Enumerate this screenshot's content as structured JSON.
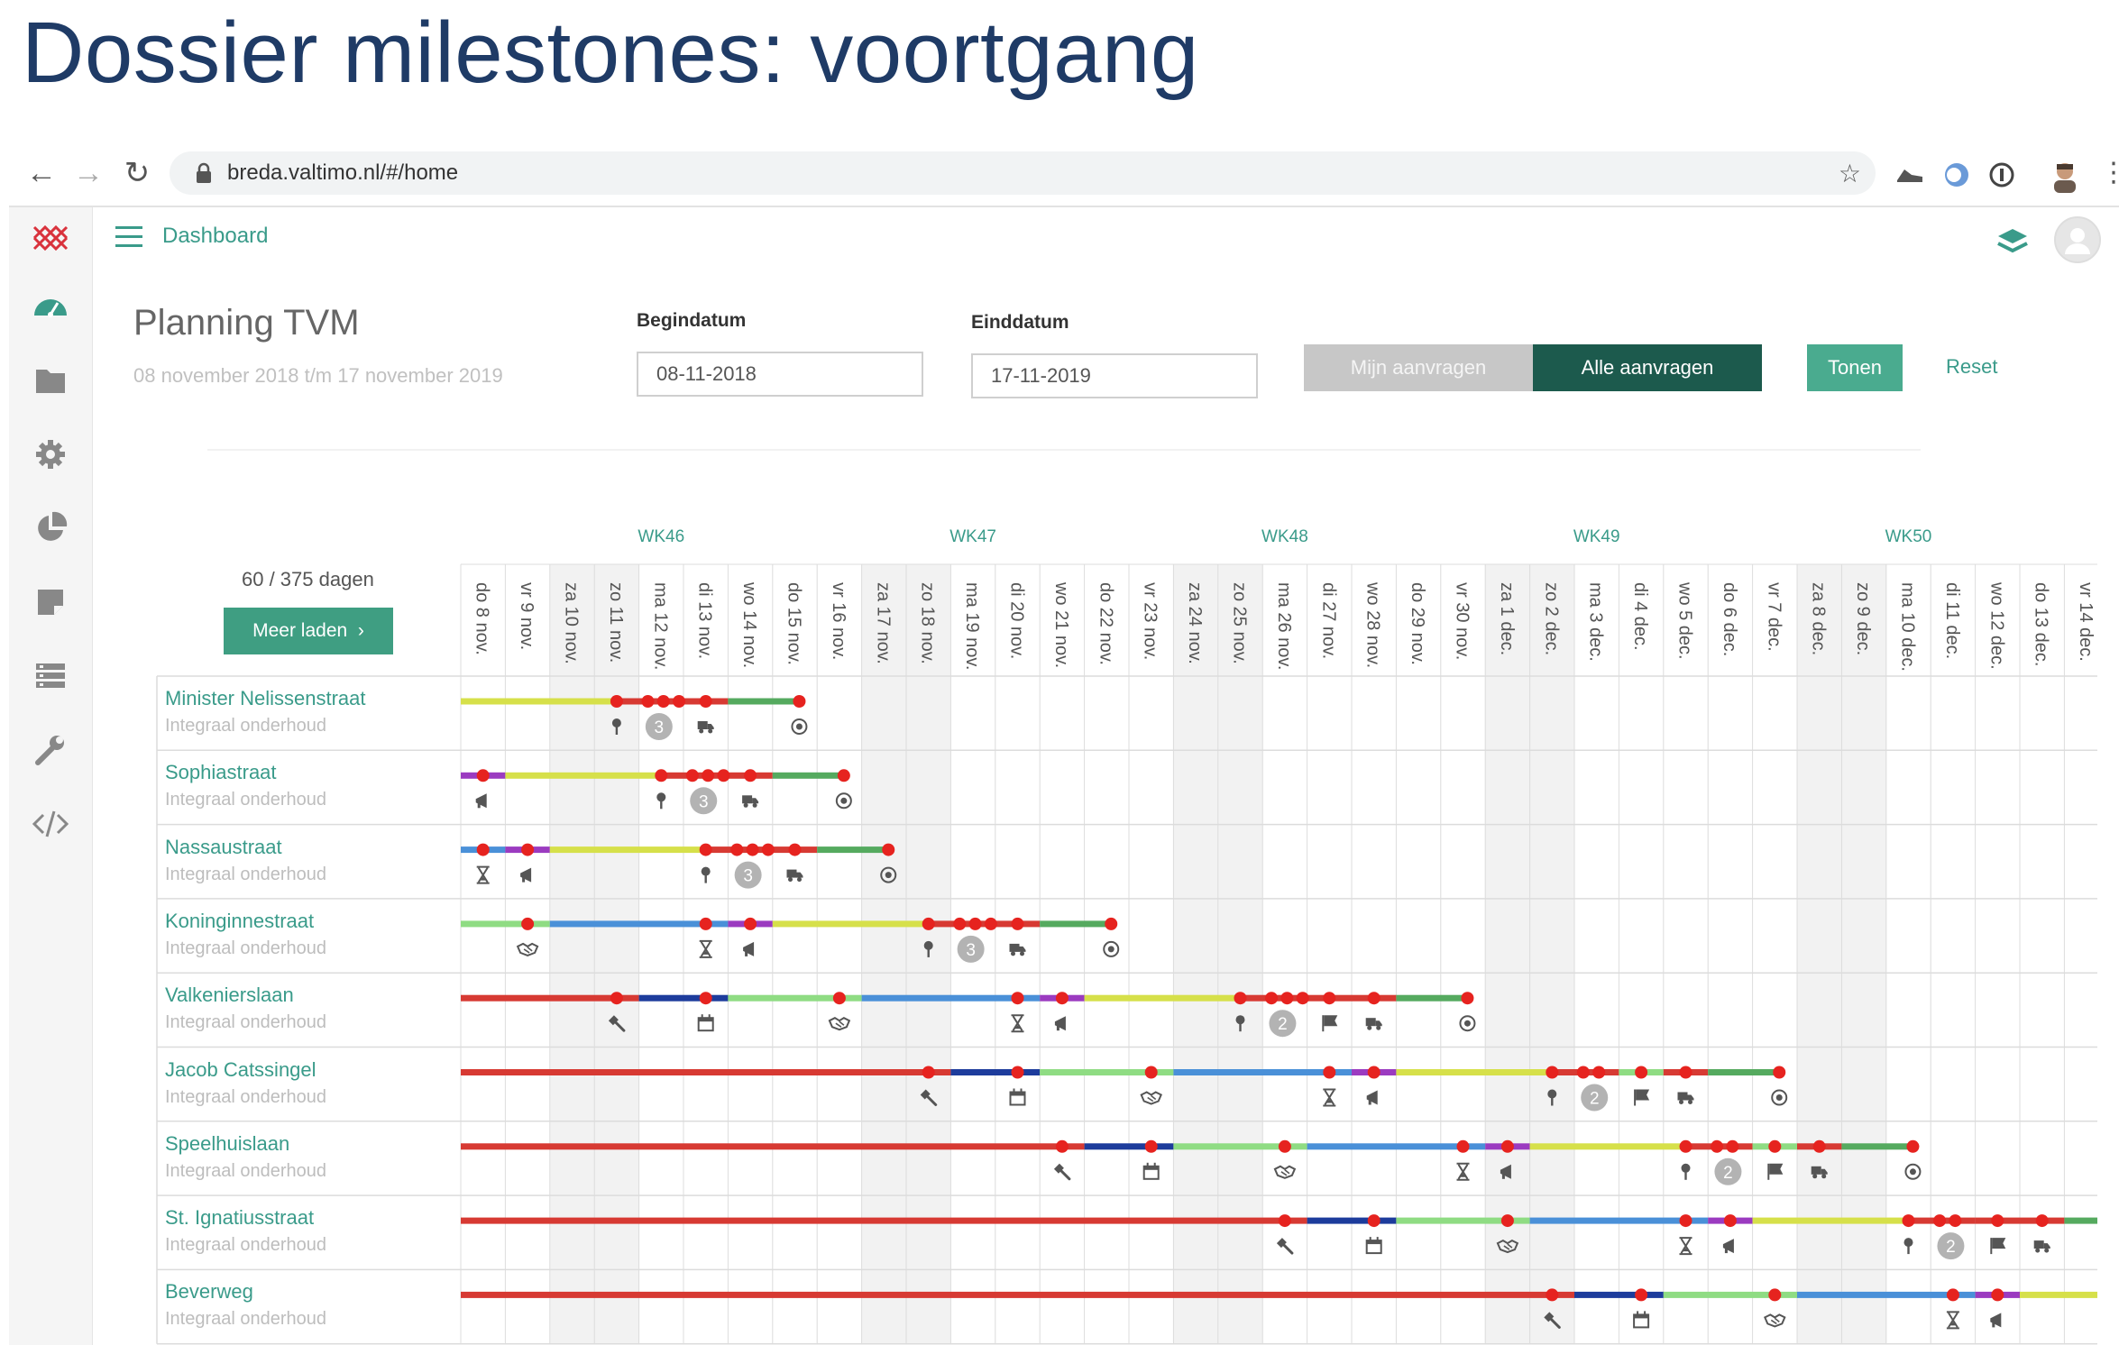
{
  "slide_title": "Dossier milestones: voortgang",
  "browser": {
    "url": "breda.valtimo.nl/#/home"
  },
  "topbar": {
    "title": "Dashboard"
  },
  "planning": {
    "title": "Planning TVM",
    "subtitle": "08 november 2018 t/m 17 november 2019",
    "begin_label": "Begindatum",
    "begin_value": "08-11-2018",
    "end_label": "Einddatum",
    "end_value": "17-11-2019",
    "btn_mijn": "Mijn aanvragen",
    "btn_alle": "Alle aanvragen",
    "btn_tonen": "Tonen",
    "btn_reset": "Reset",
    "days_count": "60 / 375 dagen",
    "btn_meer": "Meer laden"
  },
  "colors": {
    "accent": "#3a9b8a",
    "dark_green": "#1c5a4d",
    "red": "#d73a33",
    "yellow": "#d6e04a",
    "blue": "#4a90d8",
    "navy": "#1d3c9c",
    "purple": "#9b3bc0",
    "green": "#55aa5f",
    "light_green": "#8fdc83",
    "marker": "#e6231f"
  },
  "weeks": [
    {
      "label": "WK46",
      "day": 4
    },
    {
      "label": "WK47",
      "day": 11
    },
    {
      "label": "WK48",
      "day": 18
    },
    {
      "label": "WK49",
      "day": 25
    },
    {
      "label": "WK50",
      "day": 32
    }
  ],
  "days": [
    {
      "label": "do 8 nov.",
      "weekend": false
    },
    {
      "label": "vr 9 nov.",
      "weekend": false
    },
    {
      "label": "za 10 nov.",
      "weekend": true
    },
    {
      "label": "zo 11 nov.",
      "weekend": true
    },
    {
      "label": "ma 12 nov.",
      "weekend": false
    },
    {
      "label": "di 13 nov.",
      "weekend": false
    },
    {
      "label": "wo 14 nov.",
      "weekend": false
    },
    {
      "label": "do 15 nov.",
      "weekend": false
    },
    {
      "label": "vr 16 nov.",
      "weekend": false
    },
    {
      "label": "za 17 nov.",
      "weekend": true
    },
    {
      "label": "zo 18 nov.",
      "weekend": true
    },
    {
      "label": "ma 19 nov.",
      "weekend": false
    },
    {
      "label": "di 20 nov.",
      "weekend": false
    },
    {
      "label": "wo 21 nov.",
      "weekend": false
    },
    {
      "label": "do 22 nov.",
      "weekend": false
    },
    {
      "label": "vr 23 nov.",
      "weekend": false
    },
    {
      "label": "za 24 nov.",
      "weekend": true
    },
    {
      "label": "zo 25 nov.",
      "weekend": true
    },
    {
      "label": "ma 26 nov.",
      "weekend": false
    },
    {
      "label": "di 27 nov.",
      "weekend": false
    },
    {
      "label": "wo 28 nov.",
      "weekend": false
    },
    {
      "label": "do 29 nov.",
      "weekend": false
    },
    {
      "label": "vr 30 nov.",
      "weekend": false
    },
    {
      "label": "za 1 dec.",
      "weekend": true
    },
    {
      "label": "zo 2 dec.",
      "weekend": true
    },
    {
      "label": "ma 3 dec.",
      "weekend": false
    },
    {
      "label": "di 4 dec.",
      "weekend": false
    },
    {
      "label": "wo 5 dec.",
      "weekend": false
    },
    {
      "label": "do 6 dec.",
      "weekend": false
    },
    {
      "label": "vr 7 dec.",
      "weekend": false
    },
    {
      "label": "za 8 dec.",
      "weekend": true
    },
    {
      "label": "zo 9 dec.",
      "weekend": true
    },
    {
      "label": "ma 10 dec.",
      "weekend": false
    },
    {
      "label": "di 11 dec.",
      "weekend": false
    },
    {
      "label": "wo 12 dec.",
      "weekend": false
    },
    {
      "label": "do 13 dec.",
      "weekend": false
    },
    {
      "label": "vr 14 dec.",
      "weekend": false
    }
  ],
  "rows": [
    {
      "name": "Minister Nelissenstraat",
      "type": "Integraal onderhoud",
      "segments": [
        [
          0,
          3.5,
          "yellow"
        ],
        [
          3.5,
          5,
          "red"
        ],
        [
          5,
          6,
          "red"
        ],
        [
          6,
          7.6,
          "green"
        ]
      ],
      "dots": [
        3.5,
        4.2,
        4.55,
        4.9,
        5.5,
        7.6
      ],
      "icons": [
        [
          3.5,
          "pin"
        ],
        [
          4.45,
          "badge",
          "3"
        ],
        [
          5.5,
          "truck"
        ],
        [
          7.6,
          "target"
        ]
      ]
    },
    {
      "name": "Sophiastraat",
      "type": "Integraal onderhoud",
      "segments": [
        [
          0,
          0.5,
          "purple"
        ],
        [
          0.5,
          1,
          "purple"
        ],
        [
          1,
          4.5,
          "yellow"
        ],
        [
          4.5,
          6,
          "red"
        ],
        [
          6,
          7,
          "red"
        ],
        [
          7,
          8.6,
          "green"
        ]
      ],
      "dots": [
        0.5,
        4.5,
        5.2,
        5.55,
        5.9,
        6.5,
        8.6
      ],
      "icons": [
        [
          0.5,
          "megaphone"
        ],
        [
          4.5,
          "pin"
        ],
        [
          5.45,
          "badge",
          "3"
        ],
        [
          6.5,
          "truck"
        ],
        [
          8.6,
          "target"
        ]
      ]
    },
    {
      "name": "Nassaustraat",
      "type": "Integraal onderhoud",
      "segments": [
        [
          0,
          0.5,
          "blue"
        ],
        [
          0.5,
          1,
          "blue"
        ],
        [
          1,
          1.5,
          "purple"
        ],
        [
          1.5,
          2,
          "purple"
        ],
        [
          2,
          5.5,
          "yellow"
        ],
        [
          5.5,
          7,
          "red"
        ],
        [
          7,
          8,
          "red"
        ],
        [
          8,
          9.6,
          "green"
        ]
      ],
      "dots": [
        0.5,
        1.5,
        5.5,
        6.2,
        6.55,
        6.9,
        7.5,
        9.6
      ],
      "icons": [
        [
          0.5,
          "hourglass"
        ],
        [
          1.5,
          "megaphone"
        ],
        [
          5.5,
          "pin"
        ],
        [
          6.45,
          "badge",
          "3"
        ],
        [
          7.5,
          "truck"
        ],
        [
          9.6,
          "target"
        ]
      ]
    },
    {
      "name": "Koninginnestraat",
      "type": "Integraal onderhoud",
      "segments": [
        [
          0,
          1.5,
          "lightgreen"
        ],
        [
          1.5,
          2,
          "lightgreen"
        ],
        [
          2,
          5.5,
          "blue"
        ],
        [
          5.5,
          6,
          "blue"
        ],
        [
          6,
          6.5,
          "purple"
        ],
        [
          6.5,
          7,
          "purple"
        ],
        [
          7,
          10.5,
          "yellow"
        ],
        [
          10.5,
          12,
          "red"
        ],
        [
          12,
          13,
          "red"
        ],
        [
          13,
          14.6,
          "green"
        ]
      ],
      "dots": [
        1.5,
        5.5,
        6.5,
        10.5,
        11.2,
        11.55,
        11.9,
        12.5,
        14.6
      ],
      "icons": [
        [
          1.5,
          "handshake"
        ],
        [
          5.5,
          "hourglass"
        ],
        [
          6.5,
          "megaphone"
        ],
        [
          10.5,
          "pin"
        ],
        [
          11.45,
          "badge",
          "3"
        ],
        [
          12.5,
          "truck"
        ],
        [
          14.6,
          "target"
        ]
      ]
    },
    {
      "name": "Valkenierslaan",
      "type": "Integraal onderhoud",
      "segments": [
        [
          0,
          3.5,
          "red"
        ],
        [
          3.5,
          4,
          "red"
        ],
        [
          4,
          5.5,
          "navy"
        ],
        [
          5.5,
          6,
          "navy"
        ],
        [
          6,
          8.5,
          "lightgreen"
        ],
        [
          8.5,
          9,
          "lightgreen"
        ],
        [
          9,
          12.5,
          "blue"
        ],
        [
          12.5,
          13,
          "blue"
        ],
        [
          13,
          13.5,
          "purple"
        ],
        [
          13.5,
          14,
          "purple"
        ],
        [
          14,
          17.5,
          "yellow"
        ],
        [
          17.5,
          19,
          "red"
        ],
        [
          19,
          20,
          "red"
        ],
        [
          20,
          21,
          "red"
        ],
        [
          21,
          22.6,
          "green"
        ]
      ],
      "dots": [
        3.5,
        5.5,
        8.5,
        12.5,
        13.5,
        17.5,
        18.2,
        18.55,
        18.9,
        19.5,
        20.5,
        22.6
      ],
      "icons": [
        [
          3.5,
          "hammer"
        ],
        [
          5.5,
          "calendar"
        ],
        [
          8.5,
          "handshake"
        ],
        [
          12.5,
          "hourglass"
        ],
        [
          13.5,
          "megaphone"
        ],
        [
          17.5,
          "pin"
        ],
        [
          18.45,
          "badge",
          "2"
        ],
        [
          19.5,
          "flag"
        ],
        [
          20.5,
          "truck"
        ],
        [
          22.6,
          "target"
        ]
      ]
    },
    {
      "name": "Jacob Catssingel",
      "type": "Integraal onderhoud",
      "segments": [
        [
          0,
          10.5,
          "red"
        ],
        [
          10.5,
          11,
          "red"
        ],
        [
          11,
          12.5,
          "navy"
        ],
        [
          12.5,
          13,
          "navy"
        ],
        [
          13,
          15.5,
          "lightgreen"
        ],
        [
          15.5,
          16,
          "lightgreen"
        ],
        [
          16,
          19.5,
          "blue"
        ],
        [
          19.5,
          20,
          "blue"
        ],
        [
          20,
          20.5,
          "purple"
        ],
        [
          20.5,
          21,
          "purple"
        ],
        [
          21,
          24.5,
          "yellow"
        ],
        [
          24.5,
          26,
          "red"
        ],
        [
          26,
          27,
          "lightgreen"
        ],
        [
          27,
          28,
          "red"
        ],
        [
          28,
          29.6,
          "green"
        ]
      ],
      "dots": [
        10.5,
        12.5,
        15.5,
        19.5,
        20.5,
        24.5,
        25.2,
        25.55,
        26.5,
        27.5,
        29.6
      ],
      "icons": [
        [
          10.5,
          "hammer"
        ],
        [
          12.5,
          "calendar"
        ],
        [
          15.5,
          "handshake"
        ],
        [
          19.5,
          "hourglass"
        ],
        [
          20.5,
          "megaphone"
        ],
        [
          24.5,
          "pin"
        ],
        [
          25.45,
          "badge",
          "2"
        ],
        [
          26.5,
          "flag"
        ],
        [
          27.5,
          "truck"
        ],
        [
          29.6,
          "target"
        ]
      ]
    },
    {
      "name": "Speelhuislaan",
      "type": "Integraal onderhoud",
      "segments": [
        [
          0,
          13.5,
          "red"
        ],
        [
          13.5,
          14,
          "red"
        ],
        [
          14,
          15.5,
          "navy"
        ],
        [
          15.5,
          16,
          "navy"
        ],
        [
          16,
          18.5,
          "lightgreen"
        ],
        [
          18.5,
          19,
          "lightgreen"
        ],
        [
          19,
          22.5,
          "blue"
        ],
        [
          22.5,
          23,
          "blue"
        ],
        [
          23,
          23.5,
          "purple"
        ],
        [
          23.5,
          24,
          "purple"
        ],
        [
          24,
          27.5,
          "yellow"
        ],
        [
          27.5,
          29,
          "red"
        ],
        [
          29,
          30,
          "lightgreen"
        ],
        [
          30,
          31,
          "red"
        ],
        [
          31,
          32.6,
          "green"
        ]
      ],
      "dots": [
        13.5,
        15.5,
        18.5,
        22.5,
        23.5,
        27.5,
        28.2,
        28.55,
        29.5,
        30.5,
        32.6
      ],
      "icons": [
        [
          13.5,
          "hammer"
        ],
        [
          15.5,
          "calendar"
        ],
        [
          18.5,
          "handshake"
        ],
        [
          22.5,
          "hourglass"
        ],
        [
          23.5,
          "megaphone"
        ],
        [
          27.5,
          "pin"
        ],
        [
          28.45,
          "badge",
          "2"
        ],
        [
          29.5,
          "flag"
        ],
        [
          30.5,
          "truck"
        ],
        [
          32.6,
          "target"
        ]
      ]
    },
    {
      "name": "St. Ignatiusstraat",
      "type": "Integraal onderhoud",
      "segments": [
        [
          0,
          18.5,
          "red"
        ],
        [
          18.5,
          19,
          "red"
        ],
        [
          19,
          20.5,
          "navy"
        ],
        [
          20.5,
          21,
          "navy"
        ],
        [
          21,
          23.5,
          "lightgreen"
        ],
        [
          23.5,
          24,
          "lightgreen"
        ],
        [
          24,
          27.5,
          "blue"
        ],
        [
          27.5,
          28,
          "blue"
        ],
        [
          28,
          28.5,
          "purple"
        ],
        [
          28.5,
          29,
          "purple"
        ],
        [
          29,
          32.5,
          "yellow"
        ],
        [
          32.5,
          34,
          "red"
        ],
        [
          34,
          35,
          "red"
        ],
        [
          35,
          36,
          "red"
        ],
        [
          36,
          37,
          "green"
        ]
      ],
      "dots": [
        18.5,
        20.5,
        23.5,
        27.5,
        28.5,
        32.5,
        33.2,
        33.55,
        34.5,
        35.5
      ],
      "icons": [
        [
          18.5,
          "hammer"
        ],
        [
          20.5,
          "calendar"
        ],
        [
          23.5,
          "handshake"
        ],
        [
          27.5,
          "hourglass"
        ],
        [
          28.5,
          "megaphone"
        ],
        [
          32.5,
          "pin"
        ],
        [
          33.45,
          "badge",
          "2"
        ],
        [
          34.5,
          "flag"
        ],
        [
          35.5,
          "truck"
        ]
      ]
    },
    {
      "name": "Beverweg",
      "type": "Integraal onderhoud",
      "segments": [
        [
          0,
          24.5,
          "red"
        ],
        [
          24.5,
          25,
          "red"
        ],
        [
          25,
          26.5,
          "navy"
        ],
        [
          26.5,
          27,
          "navy"
        ],
        [
          27,
          29.5,
          "lightgreen"
        ],
        [
          29.5,
          30,
          "lightgreen"
        ],
        [
          30,
          33.5,
          "blue"
        ],
        [
          33.5,
          34,
          "blue"
        ],
        [
          34,
          34.5,
          "purple"
        ],
        [
          34.5,
          35,
          "purple"
        ],
        [
          35,
          37,
          "yellow"
        ]
      ],
      "dots": [
        24.5,
        26.5,
        29.5,
        33.5,
        34.5
      ],
      "icons": [
        [
          24.5,
          "hammer"
        ],
        [
          26.5,
          "calendar"
        ],
        [
          29.5,
          "handshake"
        ],
        [
          33.5,
          "hourglass"
        ],
        [
          34.5,
          "megaphone"
        ]
      ]
    }
  ]
}
